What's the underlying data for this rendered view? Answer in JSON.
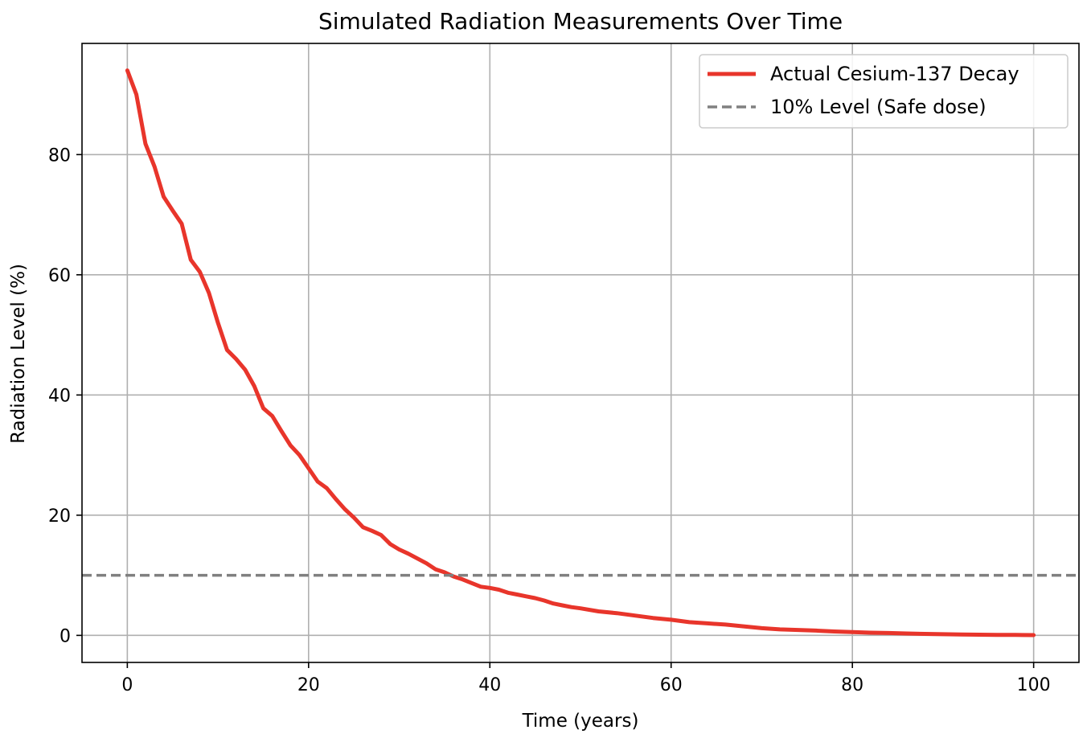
{
  "chart_data": {
    "type": "line",
    "title": "Simulated Radiation Measurements Over Time",
    "xlabel": "Time (years)",
    "ylabel": "Radiation Level (%)",
    "xlim": [
      -5,
      105
    ],
    "ylim": [
      -4.5,
      98.5
    ],
    "xticks": [
      0,
      20,
      40,
      60,
      80,
      100
    ],
    "yticks": [
      0,
      20,
      40,
      60,
      80
    ],
    "grid": true,
    "legend_position": "top-right",
    "series": [
      {
        "name": "Actual Cesium-137 Decay",
        "color": "#e8352b",
        "style": "solid",
        "x": [
          0,
          1,
          2,
          3,
          4,
          5,
          6,
          7,
          8,
          9,
          10,
          11,
          12,
          13,
          14,
          15,
          16,
          17,
          18,
          19,
          20,
          21,
          22,
          23,
          24,
          25,
          26,
          27,
          28,
          29,
          30,
          31,
          32,
          33,
          34,
          35,
          36,
          37,
          38,
          39,
          40,
          41,
          42,
          43,
          44,
          45,
          46,
          47,
          48,
          49,
          50,
          52,
          54,
          56,
          58,
          60,
          62,
          64,
          66,
          68,
          70,
          72,
          74,
          76,
          78,
          80,
          82,
          84,
          86,
          88,
          90,
          92,
          94,
          96,
          98,
          100
        ],
        "y": [
          94,
          90,
          81.8,
          78,
          73,
          70.7,
          68.5,
          62.5,
          60.5,
          57,
          52,
          47.5,
          46,
          44.2,
          41.5,
          37.8,
          36.5,
          34,
          31.6,
          30,
          27.8,
          25.6,
          24.5,
          22.7,
          21,
          19.6,
          18,
          17.4,
          16.7,
          15.2,
          14.3,
          13.6,
          12.8,
          12,
          11,
          10.5,
          9.8,
          9.3,
          8.7,
          8.1,
          7.9,
          7.6,
          7.1,
          6.8,
          6.5,
          6.2,
          5.8,
          5.3,
          5,
          4.7,
          4.5,
          4,
          3.7,
          3.3,
          2.9,
          2.6,
          2.2,
          2,
          1.8,
          1.5,
          1.2,
          1,
          0.9,
          0.8,
          0.65,
          0.55,
          0.45,
          0.4,
          0.32,
          0.25,
          0.2,
          0.16,
          0.12,
          0.09,
          0.07,
          0.05
        ]
      },
      {
        "name": "10% Level (Safe dose)",
        "color": "#808080",
        "style": "dashed",
        "hline": 10
      }
    ]
  }
}
